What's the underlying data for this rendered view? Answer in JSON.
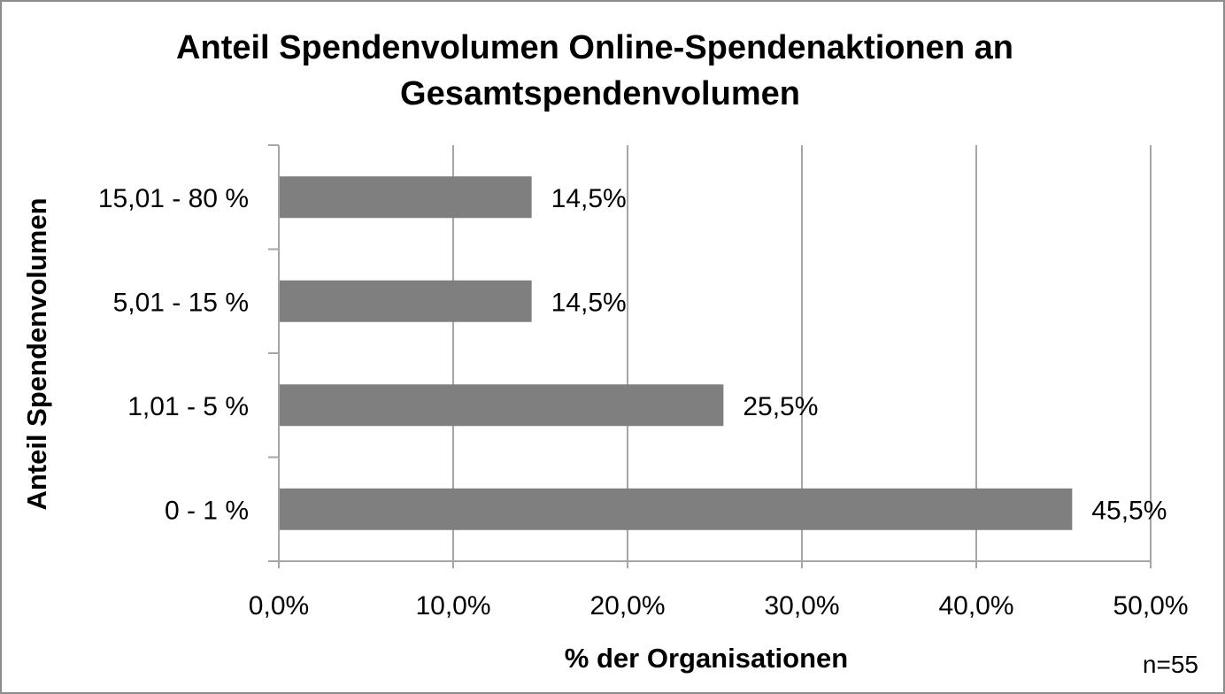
{
  "chart_data": {
    "type": "bar",
    "orientation": "horizontal",
    "title_lines": [
      "Anteil Spendenvolumen Online-Spendenaktionen an",
      "Gesamtspendenvolumen"
    ],
    "xlabel": "% der Organisationen",
    "ylabel": "Anteil Spendenvolumen",
    "categories": [
      "0 - 1 %",
      "1,01 - 5 %",
      "5,01 - 15 %",
      "15,01 - 80 %"
    ],
    "values": [
      45.5,
      25.5,
      14.5,
      14.5
    ],
    "value_labels": [
      "45,5%",
      "25,5%",
      "14,5%",
      "14,5%"
    ],
    "xlim": [
      0,
      50
    ],
    "xticks": [
      0,
      10,
      20,
      30,
      40,
      50
    ],
    "xtick_labels": [
      "0,0%",
      "10,0%",
      "20,0%",
      "30,0%",
      "40,0%",
      "50,0%"
    ],
    "grid": "vertical",
    "legend": "none",
    "bar_color": "#7f7f7f",
    "grid_color": "#a6a6a6",
    "note": "n=55"
  }
}
